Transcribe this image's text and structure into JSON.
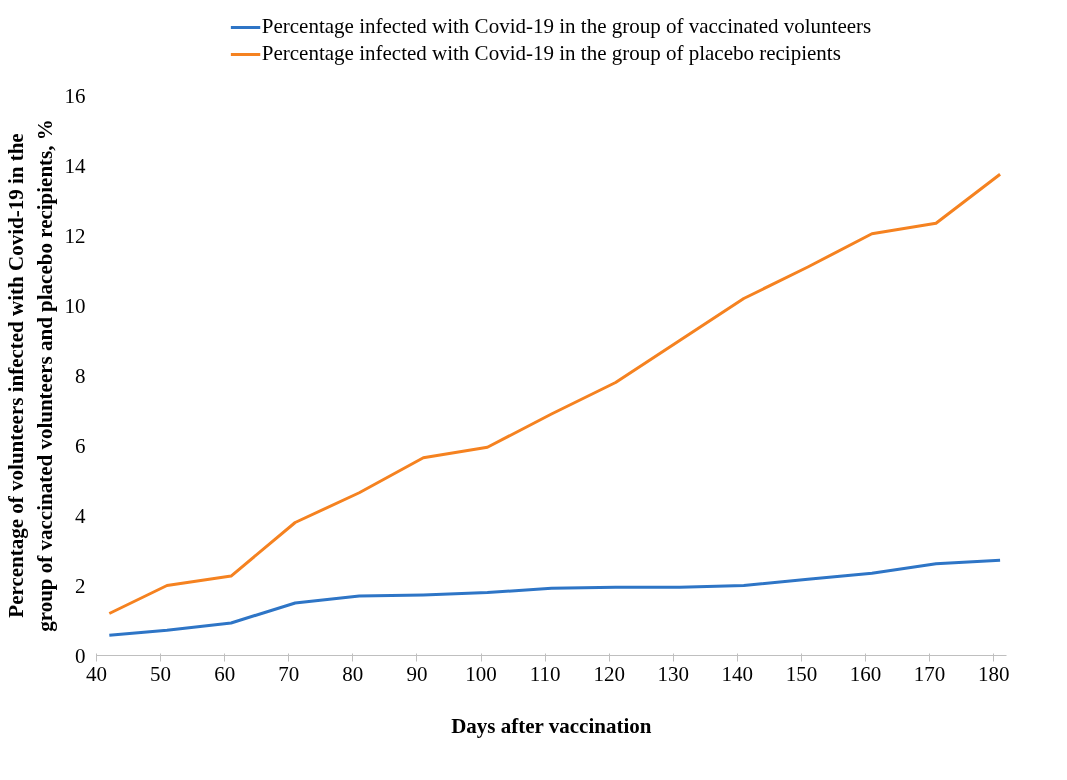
{
  "chart_data": {
    "type": "line",
    "xlabel": "Days after vaccination",
    "ylabel": "Percentage of volunteers infected with Covid-19 in the\ngroup of vaccinated volunteers and placebo recipients, %",
    "x": [
      42,
      51,
      61,
      71,
      81,
      91,
      101,
      111,
      121,
      131,
      141,
      151,
      161,
      171,
      181
    ],
    "series": [
      {
        "name": "Percentage infected with Covid-19 in the group of vaccinated volunteers",
        "color": "#2e75c6",
        "values": [
          0.58,
          0.72,
          0.93,
          1.5,
          1.7,
          1.73,
          1.8,
          1.92,
          1.95,
          1.95,
          2.0,
          2.18,
          2.35,
          2.62,
          2.72
        ]
      },
      {
        "name": "Percentage infected with Covid-19 in the group of placebo recipients",
        "color": "#f58220",
        "values": [
          1.2,
          2.0,
          2.27,
          3.8,
          4.65,
          5.65,
          5.95,
          6.9,
          7.8,
          9.0,
          10.2,
          11.1,
          12.05,
          12.35,
          13.75
        ]
      }
    ],
    "xlim": [
      40,
      182
    ],
    "xticks": [
      40,
      50,
      60,
      70,
      80,
      90,
      100,
      110,
      120,
      130,
      140,
      150,
      160,
      170,
      180
    ],
    "ylim": [
      0,
      16
    ],
    "yticks": [
      0,
      2,
      4,
      6,
      8,
      10,
      12,
      14,
      16
    ],
    "grid": false,
    "legend": "top",
    "marker": "none",
    "line_style": "solid"
  }
}
